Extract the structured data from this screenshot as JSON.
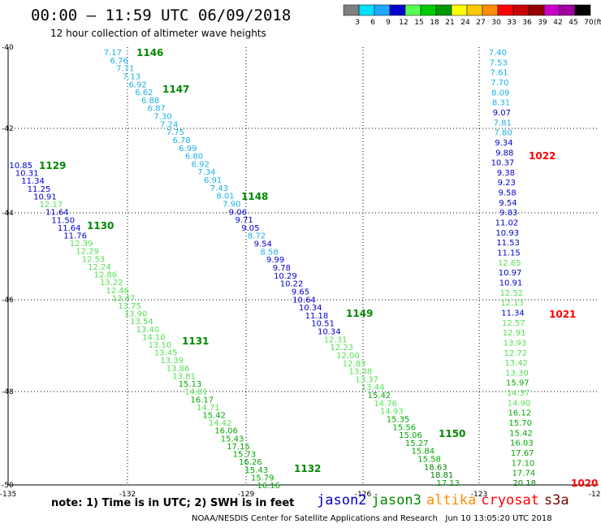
{
  "header": {
    "title": "00:00 — 11:59 UTC 06/09/2018",
    "subtitle": "12 hour collection of altimeter wave heights"
  },
  "legend": {
    "colors": [
      "#808080",
      "#00e0ff",
      "#1fa8ff",
      "#0000cc",
      "#55ff55",
      "#00cc00",
      "#009900",
      "#ffff00",
      "#ffc800",
      "#ff8c00",
      "#ff0000",
      "#c80000",
      "#960000",
      "#c800c8",
      "#a000a0",
      "#000000"
    ],
    "labels": [
      "3",
      "6",
      "9",
      "12",
      "15",
      "18",
      "21",
      "24",
      "27",
      "30",
      "33",
      "36",
      "39",
      "42",
      "45",
      "70"
    ],
    "unit": "(ft)"
  },
  "axes": {
    "y_ticks": [
      "-40",
      "-42",
      "-44",
      "-46",
      "-48",
      "-50"
    ],
    "x_ticks": [
      "-135",
      "-132",
      "-129",
      "-126",
      "-123",
      "-120"
    ]
  },
  "chart_data": {
    "type": "scatter",
    "x_units": "degrees longitude",
    "y_units": "degrees latitude",
    "xlim": [
      -135,
      -120
    ],
    "ylim": [
      -50,
      -40
    ],
    "scale": {
      "ranges": [
        "<3",
        "3-6",
        "6-9",
        "9-12",
        "12-15",
        "15-18",
        "18-21"
      ]
    },
    "tracks": [
      {
        "pass": "1146",
        "values": [
          "7.17",
          "6.76",
          "7.71",
          "7.13",
          "6.92",
          "6.62",
          "6.88",
          "6.87",
          "7.30",
          "7.24",
          "7.75",
          "6.78",
          "6.99",
          "6.80",
          "6.92",
          "7.34",
          "6.91",
          "7.43",
          "8.01",
          "7.90",
          "9.06",
          "9.71",
          "9.05",
          "8.72",
          "9.54",
          "8.58",
          "9.99",
          "9.78",
          "10.29",
          "10.22",
          "9.65",
          "10.64",
          "10.34",
          "11.18",
          "10.51",
          "10.34",
          "12.31",
          "12.23",
          "12.00",
          "12.83",
          "13.38",
          "13.37",
          "13.44",
          "15.42",
          "14.76",
          "14.93",
          "15.35",
          "15.56",
          "15.06",
          "15.27",
          "15.84",
          "15.58",
          "18.63",
          "18.81",
          "17.13"
        ]
      },
      {
        "pass": "1129",
        "values": [
          "10.85",
          "10.31",
          "11.34",
          "11.25",
          "10.91",
          "12.17",
          "11.64",
          "11.50",
          "11.64",
          "11.76",
          "12.39",
          "12.29",
          "12.53",
          "12.24",
          "12.86",
          "13.22",
          "12.46",
          "13.47",
          "13.75",
          "13.90",
          "13.54",
          "13.40",
          "14.10",
          "13.10",
          "13.45",
          "13.39",
          "13.86",
          "13.81",
          "15.13",
          "14.81",
          "16.17",
          "14.71",
          "15.42",
          "14.42",
          "16.06",
          "15.43",
          "17.15",
          "15.73",
          "16.26",
          "15.43",
          "15.79",
          "16.16"
        ]
      },
      {
        "pass": "1022",
        "values": [
          "7.40",
          "7.53",
          "7.61",
          "7.70",
          "8.09",
          "8.31",
          "9.07",
          "7.81",
          "7.80",
          "9.34",
          "9.88",
          "10.37",
          "9.38",
          "9.23",
          "9.58",
          "9.54",
          "9.83",
          "11.02",
          "10.93",
          "11.53",
          "11.15",
          "12.65",
          "10.97",
          "10.91",
          "12.52",
          "12.13",
          "11.34",
          "12.57",
          "12.91",
          "13.93",
          "12.72",
          "13.42",
          "13.30",
          "15.97",
          "14.37",
          "14.90",
          "16.12",
          "15.70",
          "15.42",
          "16.03",
          "17.67",
          "17.10",
          "17.74",
          "20.18"
        ]
      }
    ],
    "pass_labels": [
      {
        "text": "1146",
        "sat": "jason3"
      },
      {
        "text": "1147",
        "sat": "jason3"
      },
      {
        "text": "1148",
        "sat": "jason3"
      },
      {
        "text": "1149",
        "sat": "jason3"
      },
      {
        "text": "1150",
        "sat": "jason3"
      },
      {
        "text": "1129",
        "sat": "jason3"
      },
      {
        "text": "1130",
        "sat": "jason3"
      },
      {
        "text": "1131",
        "sat": "jason3"
      },
      {
        "text": "1132",
        "sat": "jason3"
      },
      {
        "text": "1022",
        "sat": "cryosat"
      },
      {
        "text": "1021",
        "sat": "cryosat"
      },
      {
        "text": "1020",
        "sat": "cryosat"
      }
    ]
  },
  "satellites": [
    {
      "name": "jason2",
      "color": "#0000cc"
    },
    {
      "name": "jason3",
      "color": "#008800"
    },
    {
      "name": "altika",
      "color": "#ff8c00"
    },
    {
      "name": "cryosat",
      "color": "#ff0000"
    },
    {
      "name": "s3a",
      "color": "#7a0000"
    }
  ],
  "footer": {
    "note": "note: 1) Time is in UTC; 2) SWH is in feet",
    "credit": "NOAA/NESDIS Center for Satellite Applications and Research   Jun 10 13:05:20 UTC 2018"
  }
}
